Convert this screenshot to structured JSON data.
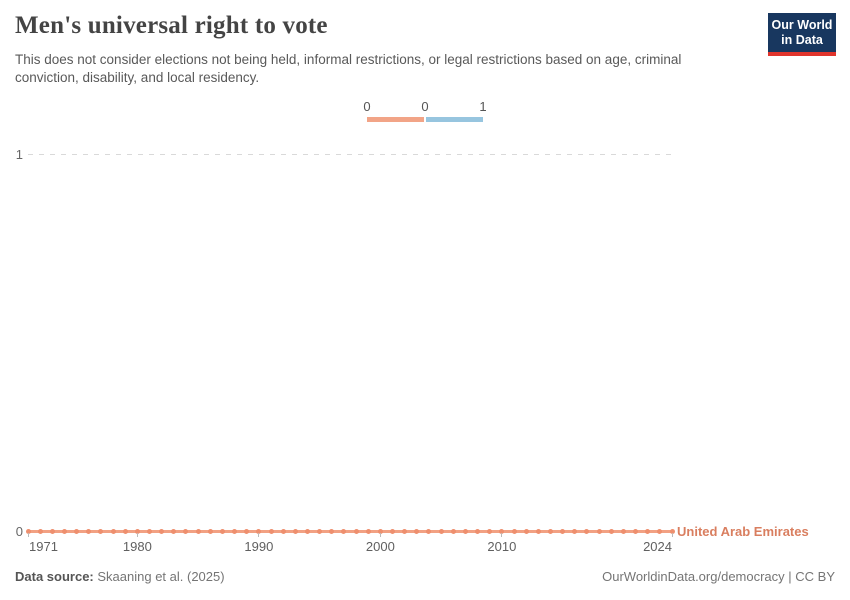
{
  "header": {
    "title": "Men's universal right to vote",
    "subtitle": "This does not consider elections not being held, informal restrictions, or legal restrictions based on age, criminal conviction, disability, and local residency.",
    "logo": {
      "line1": "Our World",
      "line2": "in Data"
    }
  },
  "legend": {
    "labels": [
      "0",
      "0",
      "1"
    ],
    "bins": [
      {
        "value": 0,
        "color": "#f2a487"
      },
      {
        "value": 1,
        "color": "#97c5df"
      }
    ]
  },
  "chart_data": {
    "type": "line",
    "title": "Men's universal right to vote",
    "entity": "United Arab Emirates",
    "x": [
      1971,
      1972,
      1973,
      1974,
      1975,
      1976,
      1977,
      1978,
      1979,
      1980,
      1981,
      1982,
      1983,
      1984,
      1985,
      1986,
      1987,
      1988,
      1989,
      1990,
      1991,
      1992,
      1993,
      1994,
      1995,
      1996,
      1997,
      1998,
      1999,
      2000,
      2001,
      2002,
      2003,
      2004,
      2005,
      2006,
      2007,
      2008,
      2009,
      2010,
      2011,
      2012,
      2013,
      2014,
      2015,
      2016,
      2017,
      2018,
      2019,
      2020,
      2021,
      2022,
      2023,
      2024
    ],
    "values": [
      0,
      0,
      0,
      0,
      0,
      0,
      0,
      0,
      0,
      0,
      0,
      0,
      0,
      0,
      0,
      0,
      0,
      0,
      0,
      0,
      0,
      0,
      0,
      0,
      0,
      0,
      0,
      0,
      0,
      0,
      0,
      0,
      0,
      0,
      0,
      0,
      0,
      0,
      0,
      0,
      0,
      0,
      0,
      0,
      0,
      0,
      0,
      0,
      0,
      0,
      0,
      0,
      0,
      0
    ],
    "xticks": [
      1971,
      1980,
      1990,
      2000,
      2010,
      2024
    ],
    "yticks": [
      0,
      1
    ],
    "ylim": [
      0,
      1
    ],
    "grid": "horizontal dashed gridline at y=1, legend top-center",
    "line_color": "#f2a183",
    "dot_color": "#ee8f6e",
    "entity_label_color": "#d97e5f"
  },
  "colors": {
    "logo_navy": "#18375f",
    "logo_red": "#e0342c",
    "legend_orange": "#f2a487",
    "legend_blue": "#97c5df"
  },
  "footer": {
    "datasource_label": "Data source:",
    "datasource_value": "Skaaning et al. (2025)",
    "right_text": "OurWorldinData.org/democracy | CC BY"
  }
}
